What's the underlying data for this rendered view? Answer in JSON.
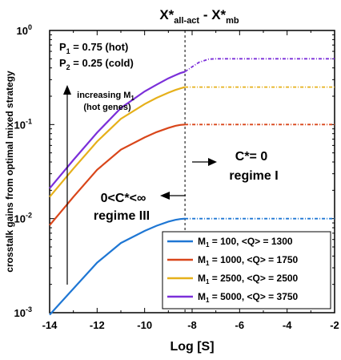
{
  "chart_data": {
    "type": "line",
    "title_main": "X*",
    "title_sub1": "all-act",
    "title_mid": " - X*",
    "title_sub2": "mb",
    "xlabel": "Log [S]",
    "ylabel": "crosstalk gains from optimal mixed strategy",
    "xlim": [
      -14,
      -2
    ],
    "ylim": [
      0.001,
      1
    ],
    "y_scale": "log",
    "x_ticks": [
      -14,
      -12,
      -10,
      -8,
      -6,
      -4,
      -2
    ],
    "x_tick_labels": [
      "-14",
      "-12",
      "-10",
      "-8",
      "-6",
      "-4",
      "-2"
    ],
    "y_ticks": [
      0.001,
      0.01,
      0.1,
      1
    ],
    "y_tick_bases": [
      "10",
      "10",
      "10",
      "10"
    ],
    "y_tick_exps": [
      "-3",
      "-2",
      "-1",
      "0"
    ],
    "threshold_x": -8.3,
    "dashed_after_threshold": true,
    "series": [
      {
        "name": "M1 = 100, <Q> = 1300",
        "color": "#1f77d4",
        "x": [
          -14,
          -13,
          -12,
          -11,
          -10,
          -9.5,
          -9,
          -8.7,
          -8.5,
          -8.3,
          -2
        ],
        "y": [
          0.00095,
          0.0018,
          0.0034,
          0.0055,
          0.0074,
          0.0084,
          0.0093,
          0.0097,
          0.0099,
          0.01,
          0.01
        ]
      },
      {
        "name": "M1 = 1000, <Q> = 1750",
        "color": "#d9461a",
        "x": [
          -14,
          -13,
          -12,
          -11,
          -10,
          -9.5,
          -9,
          -8.7,
          -8.5,
          -8.3,
          -2
        ],
        "y": [
          0.0085,
          0.017,
          0.033,
          0.054,
          0.073,
          0.083,
          0.092,
          0.097,
          0.099,
          0.1,
          0.1
        ]
      },
      {
        "name": "M1 = 2500, <Q> = 2500",
        "color": "#e6b01a",
        "x": [
          -14,
          -13,
          -12,
          -11,
          -10,
          -9.5,
          -9,
          -8.7,
          -8.5,
          -8.3,
          -2
        ],
        "y": [
          0.017,
          0.034,
          0.066,
          0.115,
          0.165,
          0.192,
          0.218,
          0.233,
          0.242,
          0.25,
          0.25
        ]
      },
      {
        "name": "M1 = 5000, <Q> = 3750",
        "color": "#7b2fd9",
        "x": [
          -14,
          -13,
          -12,
          -11,
          -10,
          -9.5,
          -9,
          -8.7,
          -8.5,
          -8.3,
          -8,
          -7.7,
          -7.3,
          -7,
          -2
        ],
        "y": [
          0.021,
          0.042,
          0.082,
          0.15,
          0.225,
          0.265,
          0.31,
          0.335,
          0.352,
          0.365,
          0.41,
          0.46,
          0.495,
          0.5,
          0.5
        ]
      }
    ],
    "legend": {
      "placement": "bottom-right",
      "entries": [
        {
          "pre": "M",
          "sub": "1",
          "post": " = 100, <Q> = 1300"
        },
        {
          "pre": "M",
          "sub": "1",
          "post": " = 1000, <Q> = 1750"
        },
        {
          "pre": "M",
          "sub": "1",
          "post": " = 2500, <Q> = 2500"
        },
        {
          "pre": "M",
          "sub": "1",
          "post": " = 5000, <Q> = 3750"
        }
      ]
    },
    "annotations": {
      "p1_pre": "P",
      "p1_sub": "1",
      "p1_post": " = 0.75 (hot)",
      "p2_pre": "P",
      "p2_sub": "2",
      "p2_post": " = 0.25 (cold)",
      "arrow_label_line1_pre": "increasing M",
      "arrow_label_line1_sub": "1",
      "arrow_label_line2": "(hot genes)",
      "regime1_line1": "C*= 0",
      "regime1_line2": "regime I",
      "regime3_line1": "0<C*<∞",
      "regime3_line2": "regime III"
    }
  }
}
